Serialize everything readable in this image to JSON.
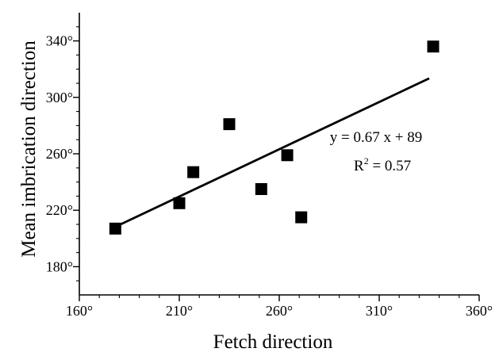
{
  "chart_data": {
    "type": "scatter",
    "title": "",
    "xlabel": "Fetch direction",
    "ylabel": "Mean imbrication direction",
    "xlim": [
      160,
      360
    ],
    "ylim": [
      160,
      360
    ],
    "x_ticks": [
      160,
      210,
      260,
      310,
      360
    ],
    "x_tick_labels": [
      "160°",
      "210°",
      "260°",
      "310°",
      "360°"
    ],
    "y_ticks": [
      180,
      220,
      260,
      300,
      340
    ],
    "y_tick_labels": [
      "180°",
      "220°",
      "260°",
      "300°",
      "340°"
    ],
    "grid": false,
    "points": [
      {
        "x": 178,
        "y": 207
      },
      {
        "x": 210,
        "y": 225
      },
      {
        "x": 217,
        "y": 247
      },
      {
        "x": 235,
        "y": 281
      },
      {
        "x": 251,
        "y": 235
      },
      {
        "x": 264,
        "y": 259
      },
      {
        "x": 271,
        "y": 215
      },
      {
        "x": 337,
        "y": 336
      }
    ],
    "trendline": {
      "slope": 0.67,
      "intercept": 89,
      "x_range": [
        178,
        335
      ],
      "equation": "y = 0.67 x + 89",
      "r2_prefix": "R",
      "r2_exponent": "2",
      "r2_value": " = 0.57"
    },
    "marker_color": "#000000",
    "line_color": "#000000"
  }
}
